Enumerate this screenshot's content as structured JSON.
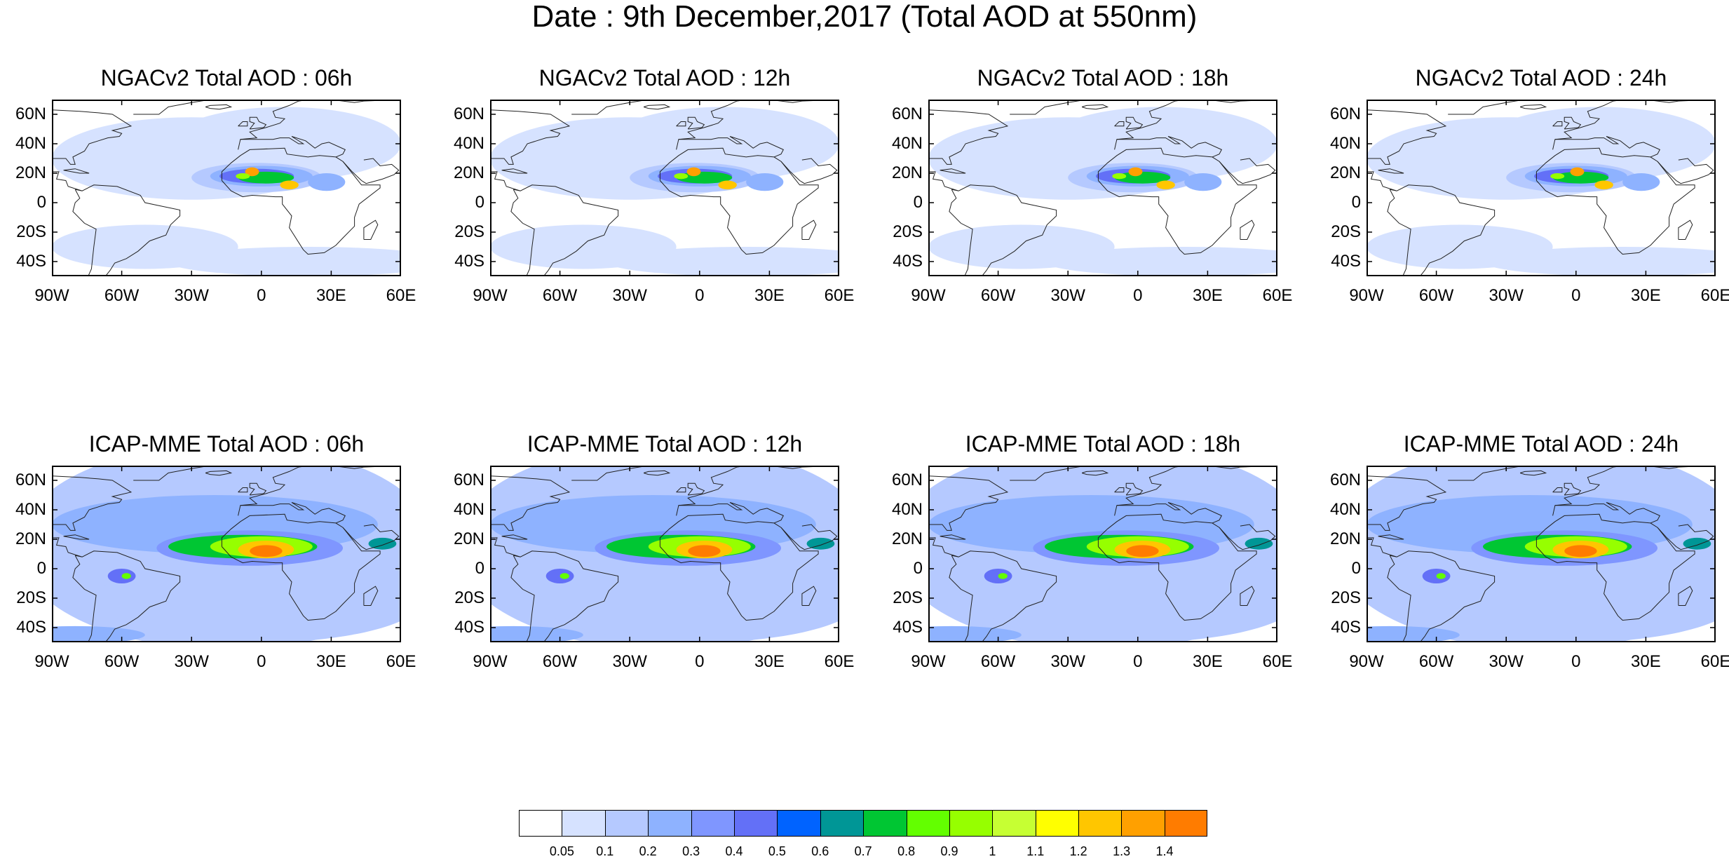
{
  "title": "Date : 9th December,2017 (Total AOD at 550nm)",
  "lat_labels": [
    "60N",
    "40N",
    "20N",
    "0",
    "20S",
    "40S"
  ],
  "lon_labels": [
    "90W",
    "60W",
    "30W",
    "0",
    "30E",
    "60E"
  ],
  "panels": [
    {
      "title": "NGACv2 Total AOD : 06h",
      "model": "NGACv2",
      "hour": "06h"
    },
    {
      "title": "NGACv2 Total AOD : 12h",
      "model": "NGACv2",
      "hour": "12h"
    },
    {
      "title": "NGACv2 Total AOD : 18h",
      "model": "NGACv2",
      "hour": "18h"
    },
    {
      "title": "NGACv2 Total AOD : 24h",
      "model": "NGACv2",
      "hour": "24h"
    },
    {
      "title": "ICAP-MME Total AOD : 06h",
      "model": "ICAP-MME",
      "hour": "06h"
    },
    {
      "title": "ICAP-MME Total AOD : 12h",
      "model": "ICAP-MME",
      "hour": "12h"
    },
    {
      "title": "ICAP-MME Total AOD : 18h",
      "model": "ICAP-MME",
      "hour": "18h"
    },
    {
      "title": "ICAP-MME Total AOD : 24h",
      "model": "ICAP-MME",
      "hour": "24h"
    }
  ],
  "colorbar": {
    "levels": [
      "0.05",
      "0.1",
      "0.2",
      "0.3",
      "0.4",
      "0.5",
      "0.6",
      "0.7",
      "0.8",
      "0.9",
      "1",
      "1.1",
      "1.2",
      "1.3",
      "1.4"
    ],
    "colors": [
      "#ffffff",
      "#d6e2ff",
      "#b5c9ff",
      "#8eb2ff",
      "#7f96ff",
      "#6370f7",
      "#0063ff",
      "#009696",
      "#00c633",
      "#63ff00",
      "#96ff00",
      "#c6ff33",
      "#ffff00",
      "#ffc600",
      "#ffa000",
      "#ff7c00",
      "#ff1900"
    ]
  }
}
